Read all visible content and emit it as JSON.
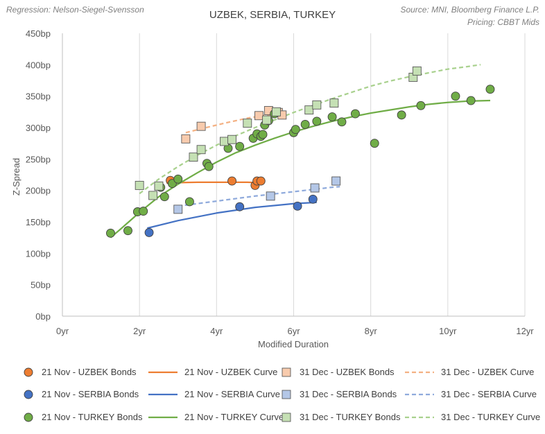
{
  "header": {
    "regression": "Regression: Nelson-Siegel-Svensson",
    "source": "Source: MNI, Bloomberg Finance L.P.",
    "pricing": "Pricing: CBBT Mids"
  },
  "chart_data": {
    "type": "scatter",
    "title": "UZBEK, SERBIA, TURKEY",
    "xlabel": "Modified Duration",
    "ylabel": "Z-Spread",
    "xlim": [
      0,
      12
    ],
    "ylim": [
      0,
      450
    ],
    "xticks": [
      0,
      2,
      4,
      6,
      8,
      10,
      12
    ],
    "yticks": [
      0,
      50,
      100,
      150,
      200,
      250,
      300,
      350,
      400,
      450
    ],
    "xtick_labels": [
      "0yr",
      "2yr",
      "4yr",
      "6yr",
      "8yr",
      "10yr",
      "12yr"
    ],
    "ytick_labels": [
      "0bp",
      "50bp",
      "100bp",
      "150bp",
      "200bp",
      "250bp",
      "300bp",
      "350bp",
      "400bp",
      "450bp"
    ],
    "grid": "vertical",
    "colors": {
      "uzbek_nov": "#ed7d31",
      "uzbek_dec": "#f8cbad",
      "serbia_nov": "#4472c4",
      "serbia_dec": "#b4c7e7",
      "turkey_nov": "#70ad47",
      "turkey_dec": "#c5e0b4",
      "turkey_nov_line": "#70ad47",
      "turkey_dec_line": "#a9d18e",
      "serbia_dec_line": "#8faadc",
      "uzbek_dec_line": "#f4b183"
    },
    "series": [
      {
        "name": "21 Nov - UZBEK Bonds",
        "kind": "points",
        "marker": "circle",
        "color_key": "uzbek_nov",
        "points": [
          [
            2.8,
            216
          ],
          [
            4.4,
            215
          ],
          [
            5.0,
            208
          ],
          [
            5.05,
            215
          ],
          [
            5.15,
            215
          ]
        ]
      },
      {
        "name": "21 Nov - UZBEK Curve",
        "kind": "line",
        "dash": false,
        "color_key": "uzbek_nov",
        "points": [
          [
            2.7,
            212
          ],
          [
            3.5,
            213
          ],
          [
            4.2,
            213
          ],
          [
            4.8,
            213
          ],
          [
            5.2,
            212
          ]
        ]
      },
      {
        "name": "31 Dec - UZBEK Bonds",
        "kind": "points",
        "marker": "square",
        "color_key": "uzbek_dec",
        "points": [
          [
            3.2,
            282
          ],
          [
            3.6,
            302
          ],
          [
            5.1,
            319
          ],
          [
            5.35,
            327
          ],
          [
            5.6,
            324
          ],
          [
            5.7,
            320
          ]
        ]
      },
      {
        "name": "31 Dec - UZBEK Curve",
        "kind": "line",
        "dash": true,
        "color_key": "uzbek_dec_line",
        "points": [
          [
            3.2,
            292
          ],
          [
            3.6,
            298
          ],
          [
            4.2,
            307
          ],
          [
            4.8,
            315
          ],
          [
            5.3,
            320
          ],
          [
            5.7,
            323
          ]
        ]
      },
      {
        "name": "21 Nov - SERBIA Bonds",
        "kind": "points",
        "marker": "circle",
        "color_key": "serbia_nov",
        "points": [
          [
            2.25,
            133
          ],
          [
            4.6,
            174
          ],
          [
            6.1,
            175
          ],
          [
            6.5,
            186
          ]
        ]
      },
      {
        "name": "21 Nov - SERBIA Curve",
        "kind": "line",
        "dash": false,
        "color_key": "serbia_nov",
        "points": [
          [
            2.2,
            140
          ],
          [
            3.0,
            152
          ],
          [
            4.0,
            164
          ],
          [
            5.0,
            173
          ],
          [
            6.0,
            179
          ],
          [
            6.6,
            181
          ]
        ]
      },
      {
        "name": "31 Dec - SERBIA Bonds",
        "kind": "points",
        "marker": "square",
        "color_key": "serbia_dec",
        "points": [
          [
            3.0,
            170
          ],
          [
            5.4,
            191
          ],
          [
            6.55,
            204
          ],
          [
            7.1,
            215
          ]
        ]
      },
      {
        "name": "31 Dec - SERBIA Curve",
        "kind": "line",
        "dash": true,
        "color_key": "serbia_dec_line",
        "points": [
          [
            3.0,
            175
          ],
          [
            4.0,
            183
          ],
          [
            5.0,
            191
          ],
          [
            6.0,
            198
          ],
          [
            7.0,
            205
          ],
          [
            7.2,
            206
          ]
        ]
      },
      {
        "name": "21 Nov - TURKEY Bonds",
        "kind": "points",
        "marker": "circle",
        "color_key": "turkey_nov",
        "points": [
          [
            1.25,
            132
          ],
          [
            1.7,
            136
          ],
          [
            1.95,
            166
          ],
          [
            2.1,
            167
          ],
          [
            2.55,
            205
          ],
          [
            2.65,
            190
          ],
          [
            2.85,
            211
          ],
          [
            3.0,
            218
          ],
          [
            3.3,
            182
          ],
          [
            3.75,
            243
          ],
          [
            3.8,
            238
          ],
          [
            4.3,
            267
          ],
          [
            4.6,
            270
          ],
          [
            4.95,
            283
          ],
          [
            5.05,
            290
          ],
          [
            5.15,
            286
          ],
          [
            5.2,
            289
          ],
          [
            5.25,
            304
          ],
          [
            5.35,
            311
          ],
          [
            5.5,
            322
          ],
          [
            6.0,
            292
          ],
          [
            6.05,
            297
          ],
          [
            6.3,
            305
          ],
          [
            6.6,
            310
          ],
          [
            7.0,
            317
          ],
          [
            7.25,
            309
          ],
          [
            7.6,
            322
          ],
          [
            8.1,
            275
          ],
          [
            8.8,
            320
          ],
          [
            9.3,
            335
          ],
          [
            10.2,
            350
          ],
          [
            10.6,
            343
          ],
          [
            11.1,
            361
          ]
        ]
      },
      {
        "name": "21 Nov - TURKEY Curve",
        "kind": "line",
        "dash": false,
        "color_key": "turkey_nov_line",
        "points": [
          [
            1.25,
            125
          ],
          [
            1.5,
            138
          ],
          [
            2.0,
            165
          ],
          [
            2.5,
            190
          ],
          [
            3.0,
            210
          ],
          [
            3.5,
            228
          ],
          [
            4.0,
            245
          ],
          [
            4.5,
            260
          ],
          [
            5.0,
            272
          ],
          [
            5.5,
            283
          ],
          [
            6.0,
            293
          ],
          [
            6.5,
            302
          ],
          [
            7.0,
            310
          ],
          [
            7.5,
            317
          ],
          [
            8.0,
            323
          ],
          [
            8.5,
            328
          ],
          [
            9.0,
            333
          ],
          [
            9.5,
            337
          ],
          [
            10.0,
            340
          ],
          [
            10.5,
            342
          ],
          [
            11.1,
            343
          ]
        ]
      },
      {
        "name": "31 Dec - TURKEY Bonds",
        "kind": "points",
        "marker": "square",
        "color_key": "turkey_dec",
        "points": [
          [
            2.0,
            208
          ],
          [
            2.35,
            192
          ],
          [
            2.5,
            207
          ],
          [
            3.4,
            253
          ],
          [
            3.6,
            265
          ],
          [
            4.2,
            278
          ],
          [
            4.4,
            281
          ],
          [
            4.8,
            307
          ],
          [
            5.3,
            312
          ],
          [
            5.55,
            325
          ],
          [
            6.4,
            328
          ],
          [
            6.6,
            336
          ],
          [
            7.05,
            339
          ],
          [
            9.1,
            380
          ],
          [
            9.2,
            390
          ]
        ]
      },
      {
        "name": "31 Dec - TURKEY Curve",
        "kind": "line",
        "dash": true,
        "color_key": "turkey_dec_line",
        "points": [
          [
            2.0,
            195
          ],
          [
            2.5,
            218
          ],
          [
            3.0,
            238
          ],
          [
            3.5,
            256
          ],
          [
            4.0,
            272
          ],
          [
            4.5,
            287
          ],
          [
            5.0,
            300
          ],
          [
            5.5,
            312
          ],
          [
            6.0,
            324
          ],
          [
            6.5,
            335
          ],
          [
            7.0,
            346
          ],
          [
            7.5,
            356
          ],
          [
            8.0,
            366
          ],
          [
            8.5,
            374
          ],
          [
            9.0,
            381
          ],
          [
            9.5,
            387
          ],
          [
            10.0,
            393
          ],
          [
            10.5,
            397
          ],
          [
            10.85,
            400
          ]
        ]
      }
    ]
  }
}
